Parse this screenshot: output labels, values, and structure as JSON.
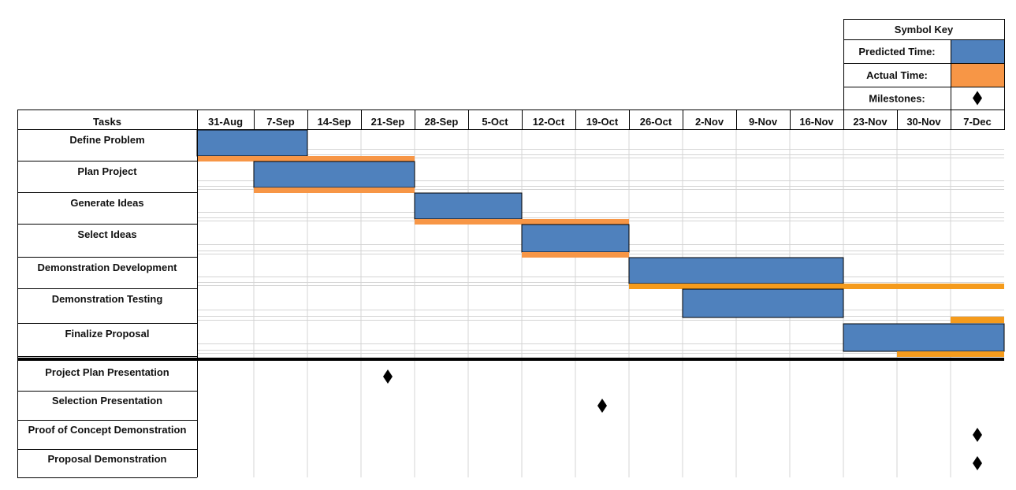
{
  "chart_data": {
    "type": "gantt",
    "legend": {
      "title": "Symbol Key",
      "items": [
        {
          "label": "Predicted Time:",
          "kind": "predicted"
        },
        {
          "label": "Actual Time:",
          "kind": "actual"
        },
        {
          "label": "Milestones:",
          "kind": "milestone"
        }
      ],
      "placement": "top-right"
    },
    "colors": {
      "predicted": "#4F81BD",
      "actual": "#F79646",
      "actual_bright": "#F59B1C",
      "milestone": "#000000"
    },
    "header_label": "Tasks",
    "weeks": [
      "31-Aug",
      "7-Sep",
      "14-Sep",
      "21-Sep",
      "28-Sep",
      "5-Oct",
      "12-Oct",
      "19-Oct",
      "26-Oct",
      "2-Nov",
      "9-Nov",
      "16-Nov",
      "23-Nov",
      "30-Nov",
      "7-Dec"
    ],
    "tasks": [
      {
        "name": "Define Problem",
        "predicted": [
          "31-Aug",
          "14-Sep"
        ],
        "actual": [
          "31-Aug",
          "28-Sep"
        ]
      },
      {
        "name": "Plan Project",
        "predicted": [
          "7-Sep",
          "28-Sep"
        ],
        "actual": [
          "7-Sep",
          "28-Sep"
        ]
      },
      {
        "name": "Generate Ideas",
        "predicted": [
          "28-Sep",
          "12-Oct"
        ],
        "actual": [
          "28-Sep",
          "26-Oct"
        ]
      },
      {
        "name": "Select Ideas",
        "predicted": [
          "12-Oct",
          "26-Oct"
        ],
        "actual": [
          "12-Oct",
          "26-Oct"
        ]
      },
      {
        "name": "Demonstration Development",
        "predicted": [
          "26-Oct",
          "23-Nov"
        ],
        "actual": [
          "26-Oct",
          "14-Dec"
        ]
      },
      {
        "name": "Demonstration Testing",
        "predicted": [
          "2-Nov",
          "23-Nov"
        ],
        "actual": null
      },
      {
        "name": "Finalize Proposal",
        "predicted": [
          "23-Nov",
          "14-Dec"
        ],
        "actual": [
          "30-Nov",
          "14-Dec"
        ],
        "actual_extra": [
          "7-Dec",
          "14-Dec"
        ]
      }
    ],
    "milestones": [
      {
        "name": "Project Plan Presentation",
        "week": "21-Sep"
      },
      {
        "name": "Selection Presentation",
        "week": "19-Oct"
      },
      {
        "name": "Proof of Concept Demonstration",
        "week": "7-Dec"
      },
      {
        "name": "Proposal Demonstration",
        "week": "7-Dec"
      }
    ]
  }
}
